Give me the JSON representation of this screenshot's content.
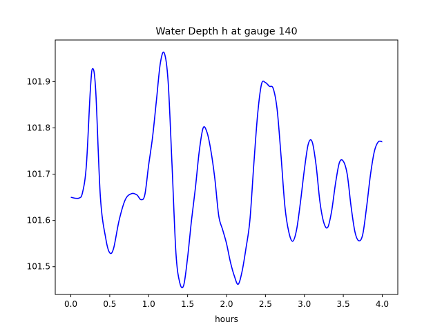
{
  "chart_data": {
    "type": "line",
    "title": "Water Depth h at gauge 140",
    "xlabel": "hours",
    "ylabel": "",
    "xlim": [
      -0.2,
      4.2
    ],
    "ylim": [
      101.44,
      101.99
    ],
    "x_ticks": [
      0.0,
      0.5,
      1.0,
      1.5,
      2.0,
      2.5,
      3.0,
      3.5,
      4.0
    ],
    "x_tick_labels": [
      "0.0",
      "0.5",
      "1.0",
      "1.5",
      "2.0",
      "2.5",
      "3.0",
      "3.5",
      "4.0"
    ],
    "y_ticks": [
      101.5,
      101.6,
      101.7,
      101.8,
      101.9
    ],
    "y_tick_labels": [
      "101.5",
      "101.6",
      "101.7",
      "101.8",
      "101.9"
    ],
    "grid": false,
    "series": [
      {
        "color": "#0000ff",
        "x": [
          0.0,
          0.1,
          0.15,
          0.2,
          0.25,
          0.28,
          0.32,
          0.38,
          0.45,
          0.5,
          0.55,
          0.62,
          0.7,
          0.78,
          0.85,
          0.9,
          0.95,
          1.0,
          1.05,
          1.1,
          1.15,
          1.2,
          1.25,
          1.3,
          1.35,
          1.4,
          1.45,
          1.5,
          1.55,
          1.6,
          1.65,
          1.7,
          1.75,
          1.8,
          1.85,
          1.9,
          1.95,
          2.0,
          2.05,
          2.1,
          2.15,
          2.2,
          2.25,
          2.3,
          2.35,
          2.4,
          2.45,
          2.5,
          2.55,
          2.6,
          2.65,
          2.7,
          2.75,
          2.8,
          2.85,
          2.9,
          2.95,
          3.0,
          3.05,
          3.1,
          3.15,
          3.2,
          3.25,
          3.3,
          3.35,
          3.4,
          3.45,
          3.5,
          3.55,
          3.6,
          3.65,
          3.7,
          3.75,
          3.8,
          3.85,
          3.9,
          3.95,
          4.0
        ],
        "y": [
          101.65,
          101.648,
          101.66,
          101.72,
          101.88,
          101.928,
          101.88,
          101.65,
          101.56,
          101.53,
          101.54,
          101.6,
          101.645,
          101.658,
          101.655,
          101.645,
          101.655,
          101.72,
          101.78,
          101.86,
          101.94,
          101.962,
          101.9,
          101.72,
          101.53,
          101.465,
          101.46,
          101.52,
          101.6,
          101.67,
          101.75,
          101.8,
          101.79,
          101.75,
          101.69,
          101.61,
          101.58,
          101.55,
          101.51,
          101.48,
          101.462,
          101.49,
          101.54,
          101.6,
          101.72,
          101.83,
          101.895,
          101.898,
          101.89,
          101.885,
          101.84,
          101.74,
          101.63,
          101.575,
          101.555,
          101.58,
          101.64,
          101.71,
          101.765,
          101.77,
          101.72,
          101.64,
          101.595,
          101.585,
          101.62,
          101.68,
          101.725,
          101.728,
          101.7,
          101.63,
          101.575,
          101.556,
          101.57,
          101.63,
          101.7,
          101.75,
          101.77,
          101.77
        ]
      }
    ]
  }
}
